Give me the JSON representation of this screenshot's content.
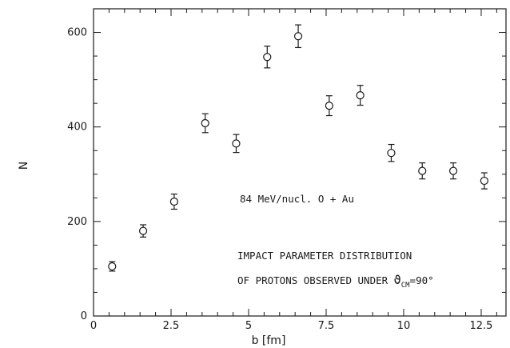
{
  "chart_data": {
    "type": "scatter",
    "xlabel": "b [fm]",
    "ylabel": "N",
    "xlim": [
      0,
      13.3
    ],
    "ylim": [
      0,
      650
    ],
    "grid": false,
    "x_ticks": [
      0,
      2.5,
      5,
      7.5,
      10,
      12.5
    ],
    "x_tick_labels": [
      "0",
      "2.5",
      "5",
      "7.5",
      "10",
      "12.5"
    ],
    "y_ticks": [
      0,
      200,
      400,
      600
    ],
    "y_tick_labels": [
      "0",
      "200",
      "400",
      "600"
    ],
    "points": [
      {
        "x": 0.6,
        "y": 105,
        "err": 10
      },
      {
        "x": 1.6,
        "y": 180,
        "err": 13
      },
      {
        "x": 2.6,
        "y": 242,
        "err": 16
      },
      {
        "x": 3.6,
        "y": 408,
        "err": 20
      },
      {
        "x": 4.6,
        "y": 365,
        "err": 19
      },
      {
        "x": 5.6,
        "y": 548,
        "err": 23
      },
      {
        "x": 6.6,
        "y": 592,
        "err": 24
      },
      {
        "x": 7.6,
        "y": 445,
        "err": 21
      },
      {
        "x": 8.6,
        "y": 467,
        "err": 21
      },
      {
        "x": 9.6,
        "y": 345,
        "err": 18
      },
      {
        "x": 10.6,
        "y": 307,
        "err": 17
      },
      {
        "x": 11.6,
        "y": 307,
        "err": 17
      },
      {
        "x": 12.6,
        "y": 286,
        "err": 17
      }
    ],
    "annotations": {
      "reaction": "84 MeV/nucl. O + Au",
      "line1": "IMPACT PARAMETER DISTRIBUTION",
      "line2_prefix": "OF PROTONS OBSERVED UNDER  ",
      "theta_symbol": "ϑ",
      "theta_sub": "CM",
      "theta_value": "=90°"
    }
  }
}
